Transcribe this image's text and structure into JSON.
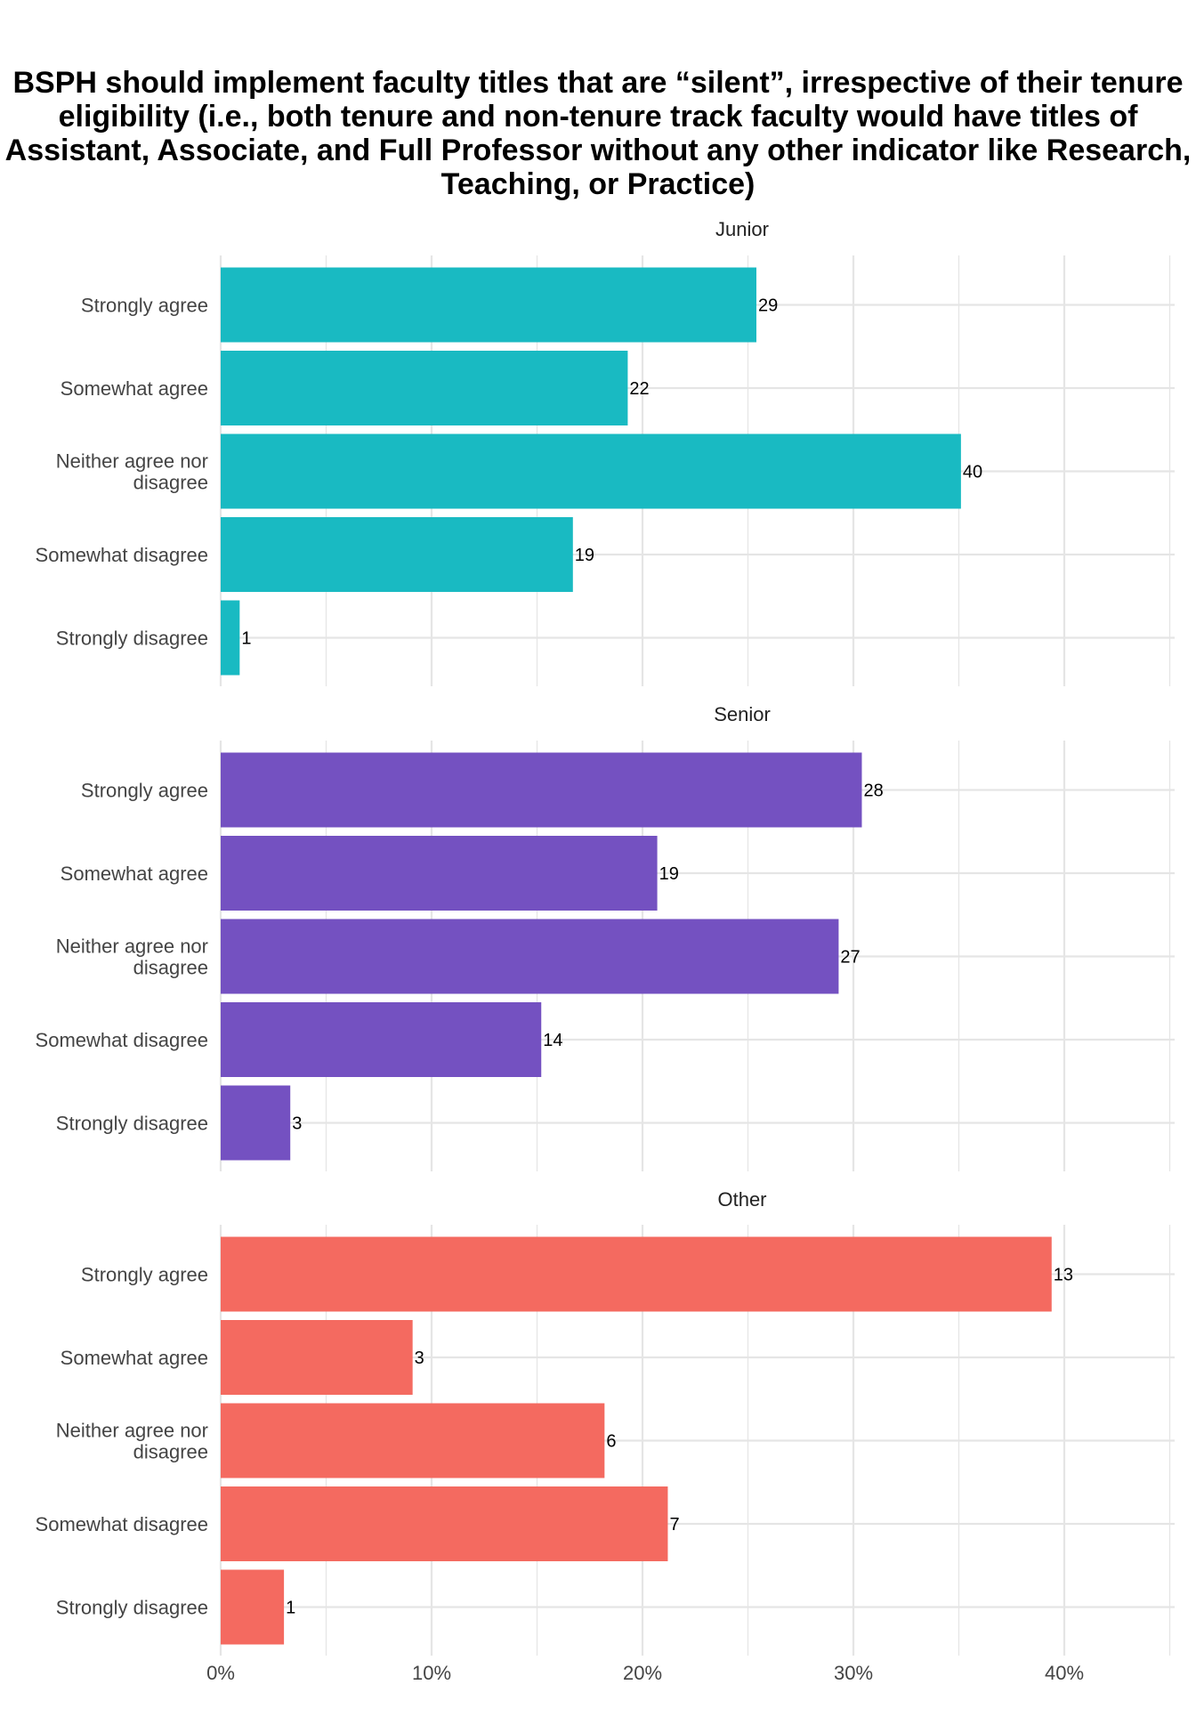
{
  "chart_data": {
    "type": "bar",
    "orientation": "horizontal",
    "title": "BSPH should implement faculty titles that are “silent”, irrespective of their tenure eligibility (i.e., both tenure and non-tenure track faculty would have titles of Assistant, Associate, and Full Professor without any other indicator like Research, Teaching, or Practice)",
    "categories": [
      [
        "Strongly agree"
      ],
      [
        "Somewhat agree"
      ],
      [
        "Neither agree nor",
        "disagree"
      ],
      [
        "Somewhat disagree"
      ],
      [
        "Strongly disagree"
      ]
    ],
    "x_ticks": [
      "0%",
      "10%",
      "20%",
      "30%",
      "40%"
    ],
    "xlim": [
      0,
      45
    ],
    "grid": true,
    "legend": "none",
    "panels": [
      {
        "name": "Junior",
        "color": "#19BAC2",
        "counts": [
          29,
          22,
          40,
          19,
          1
        ],
        "percent": [
          25.4,
          19.3,
          35.1,
          16.7,
          0.9
        ]
      },
      {
        "name": "Senior",
        "color": "#7451C1",
        "counts": [
          28,
          19,
          27,
          14,
          3
        ],
        "percent": [
          30.4,
          20.7,
          29.3,
          15.2,
          3.3
        ]
      },
      {
        "name": "Other",
        "color": "#F46A60",
        "counts": [
          13,
          3,
          6,
          7,
          1
        ],
        "percent": [
          39.4,
          9.1,
          18.2,
          21.2,
          3.0
        ]
      }
    ]
  }
}
